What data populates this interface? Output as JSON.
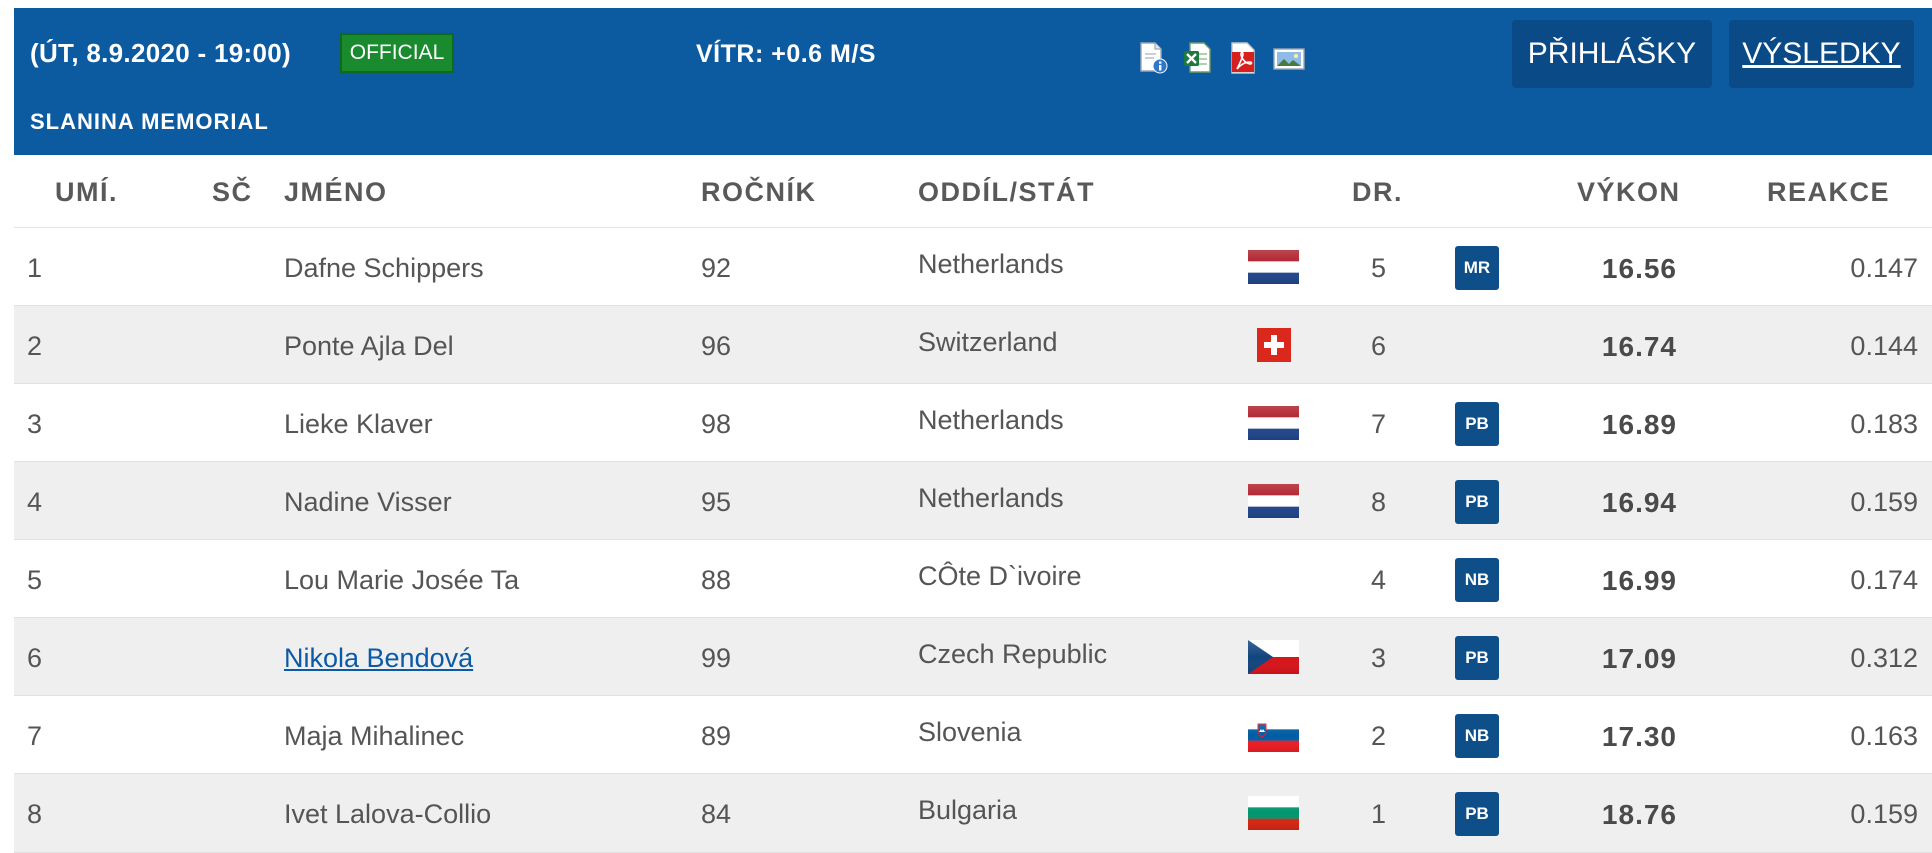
{
  "header": {
    "date_time": "(ÚT, 8.9.2020 - 19:00)",
    "status_badge": "OFFICIAL",
    "wind": "VÍTR: +0.6 M/S",
    "meeting": "SLANINA MEMORIAL",
    "file_icons": [
      "info-document-icon",
      "excel-icon",
      "pdf-icon",
      "photo-icon"
    ],
    "buttons": {
      "registrations": "PŘIHLÁŠKY",
      "results": "VÝSLEDKY"
    }
  },
  "table": {
    "columns": {
      "rank": "UMÍ.",
      "bib": "SČ",
      "name": "JMÉNO",
      "year": "ROČNÍK",
      "club": "ODDÍL/STÁT",
      "lane": "DR.",
      "performance": "VÝKON",
      "reaction": "REAKCE"
    },
    "rows": [
      {
        "rank": "1",
        "bib": "",
        "name": "Dafne Schippers",
        "year": "92",
        "country": "Netherlands",
        "flag": "netherlands-flag",
        "lane": "5",
        "record": "MR",
        "performance": "16.56",
        "reaction": "0.147"
      },
      {
        "rank": "2",
        "bib": "",
        "name": "Ponte Ajla Del",
        "year": "96",
        "country": "Switzerland",
        "flag": "switzerland-flag",
        "lane": "6",
        "record": "",
        "performance": "16.74",
        "reaction": "0.144"
      },
      {
        "rank": "3",
        "bib": "",
        "name": "Lieke Klaver",
        "year": "98",
        "country": "Netherlands",
        "flag": "netherlands-flag",
        "lane": "7",
        "record": "PB",
        "performance": "16.89",
        "reaction": "0.183"
      },
      {
        "rank": "4",
        "bib": "",
        "name": "Nadine Visser",
        "year": "95",
        "country": "Netherlands",
        "flag": "netherlands-flag",
        "lane": "8",
        "record": "PB",
        "performance": "16.94",
        "reaction": "0.159"
      },
      {
        "rank": "5",
        "bib": "",
        "name": "Lou Marie Josée Ta",
        "year": "88",
        "country": "CÔte D`ivoire",
        "flag": "",
        "lane": "4",
        "record": "NB",
        "performance": "16.99",
        "reaction": "0.174"
      },
      {
        "rank": "6",
        "bib": "",
        "name": "Nikola Bendová",
        "year": "99",
        "country": "Czech Republic",
        "flag": "czech-republic-flag",
        "lane": "3",
        "record": "PB",
        "performance": "17.09",
        "reaction": "0.312",
        "link": true
      },
      {
        "rank": "7",
        "bib": "",
        "name": "Maja Mihalinec",
        "year": "89",
        "country": "Slovenia",
        "flag": "slovenia-flag",
        "lane": "2",
        "record": "NB",
        "performance": "17.30",
        "reaction": "0.163"
      },
      {
        "rank": "8",
        "bib": "",
        "name": "Ivet Lalova-Collio",
        "year": "84",
        "country": "Bulgaria",
        "flag": "bulgaria-flag",
        "lane": "1",
        "record": "PB",
        "performance": "18.76",
        "reaction": "0.159"
      }
    ]
  },
  "colors": {
    "header_bg": "#0c5aa0",
    "button_bg": "#0a4a86",
    "official_green": "#1a8a2e",
    "record_badge": "#0e4f8a",
    "link": "#0b5aa8",
    "alt_row": "#efefef"
  }
}
